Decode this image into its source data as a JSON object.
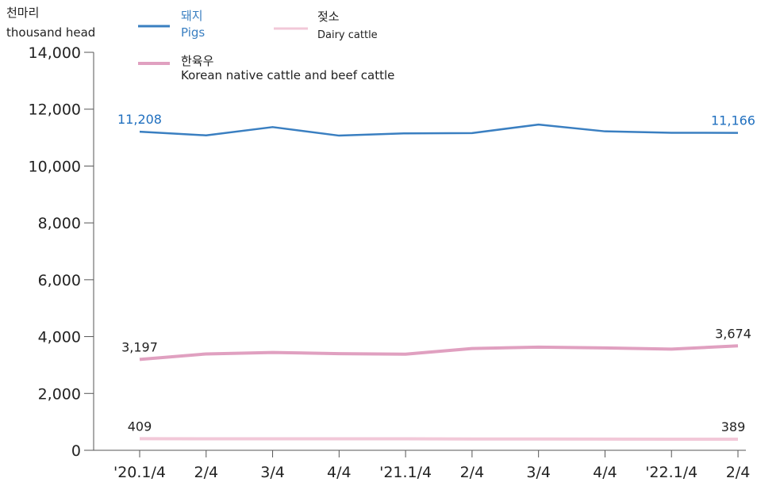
{
  "chart_data": {
    "type": "line",
    "y_unit_ko": "천마리",
    "y_unit_en": "thousand head",
    "categories": [
      "'20.1/4",
      "2/4",
      "3/4",
      "4/4",
      "'21.1/4",
      "2/4",
      "3/4",
      "4/4",
      "'22.1/4",
      "2/4"
    ],
    "ylim": [
      0,
      14000
    ],
    "yticks": [
      "0",
      "2,000",
      "4,000",
      "6,000",
      "8,000",
      "10,000",
      "12,000",
      "14,000"
    ],
    "grid": false,
    "legend_position": "top-left",
    "series": [
      {
        "name_ko": "돼지",
        "name_en": "Pigs",
        "color": "#3a7fc1",
        "values": [
          11208,
          11080,
          11370,
          11070,
          11150,
          11160,
          11460,
          11220,
          11170,
          11166
        ],
        "first_label": "11,208",
        "last_label": "11,166"
      },
      {
        "name_ko": "한육우",
        "name_en": "Korean native cattle and beef cattle",
        "color": "#e0a0c0",
        "values": [
          3197,
          3390,
          3440,
          3400,
          3380,
          3580,
          3630,
          3600,
          3560,
          3674
        ],
        "first_label": "3,197",
        "last_label": "3,674"
      },
      {
        "name_ko": "젖소",
        "name_en": "Dairy cattle",
        "color": "#f2c8d8",
        "values": [
          409,
          405,
          405,
          404,
          403,
          398,
          398,
          395,
          390,
          389
        ],
        "first_label": "409",
        "last_label": "389"
      }
    ]
  }
}
